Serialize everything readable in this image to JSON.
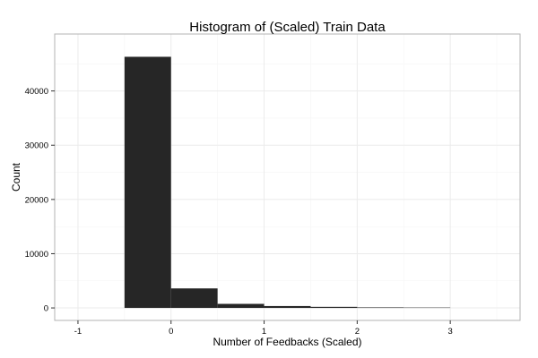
{
  "chart_data": {
    "type": "bar",
    "title": "Histogram of (Scaled) Train Data",
    "xlabel": "Number of Feedbacks (Scaled)",
    "ylabel": "Count",
    "xlim": [
      -1.25,
      3.75
    ],
    "ylim": [
      -2300,
      50500
    ],
    "x_ticks": [
      -1,
      0,
      1,
      2,
      3
    ],
    "y_ticks": [
      0,
      10000,
      20000,
      30000,
      40000
    ],
    "bin_width": 0.5,
    "bins": [
      {
        "start": -0.5,
        "end": 0.0,
        "count": 46300
      },
      {
        "start": 0.0,
        "end": 0.5,
        "count": 3600
      },
      {
        "start": 0.5,
        "end": 1.0,
        "count": 750
      },
      {
        "start": 1.0,
        "end": 1.5,
        "count": 350
      },
      {
        "start": 1.5,
        "end": 2.0,
        "count": 200
      },
      {
        "start": 2.0,
        "end": 2.5,
        "count": 100
      },
      {
        "start": 2.5,
        "end": 3.0,
        "count": 70
      }
    ],
    "grid": true,
    "bar_color": "#262626",
    "grid_major_color": "#ebebeb",
    "grid_minor_color": "#f5f5f5",
    "panel_border_color": "#b3b3b3"
  }
}
